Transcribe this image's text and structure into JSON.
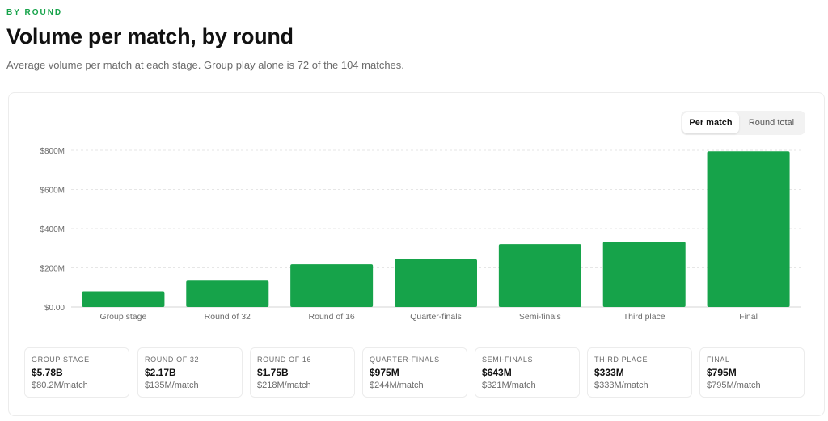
{
  "header": {
    "eyebrow": "BY ROUND",
    "title": "Volume per match, by round",
    "subtitle": "Average volume per match at each stage. Group play alone is 72 of the 104 matches."
  },
  "toggle": {
    "options": [
      "Per match",
      "Round total"
    ],
    "selected": "Per match"
  },
  "colors": {
    "bar": "#16a34a",
    "accent": "#16a34a",
    "grid": "#e6e6e6"
  },
  "chart_data": {
    "type": "bar",
    "categories": [
      "Group stage",
      "Round of 32",
      "Round of 16",
      "Quarter-finals",
      "Semi-finals",
      "Third place",
      "Final"
    ],
    "values": [
      80.2,
      135,
      218,
      244,
      321,
      333,
      795
    ],
    "value_unit": "millions USD per match",
    "yticks": [
      "$0.00",
      "$200M",
      "$400M",
      "$600M",
      "$800M"
    ],
    "ytick_values": [
      0,
      200,
      400,
      600,
      800
    ],
    "ylim": [
      0,
      800
    ],
    "grid": true,
    "title": "",
    "xlabel": "",
    "ylabel": ""
  },
  "stats": [
    {
      "label": "GROUP STAGE",
      "total": "$5.78B",
      "per_match": "$80.2M/match"
    },
    {
      "label": "ROUND OF 32",
      "total": "$2.17B",
      "per_match": "$135M/match"
    },
    {
      "label": "ROUND OF 16",
      "total": "$1.75B",
      "per_match": "$218M/match"
    },
    {
      "label": "QUARTER-FINALS",
      "total": "$975M",
      "per_match": "$244M/match"
    },
    {
      "label": "SEMI-FINALS",
      "total": "$643M",
      "per_match": "$321M/match"
    },
    {
      "label": "THIRD PLACE",
      "total": "$333M",
      "per_match": "$333M/match"
    },
    {
      "label": "FINAL",
      "total": "$795M",
      "per_match": "$795M/match"
    }
  ]
}
